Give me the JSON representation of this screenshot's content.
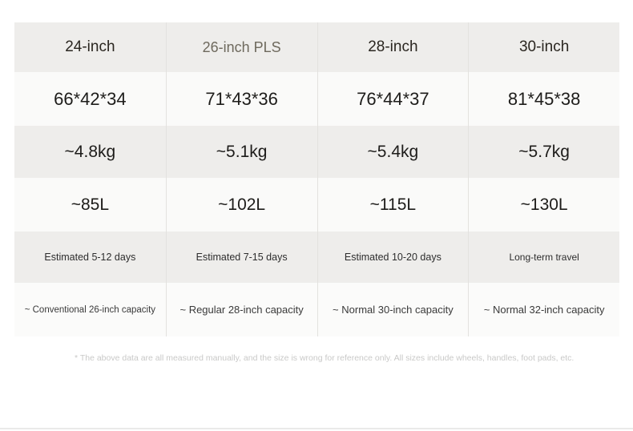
{
  "colors": {
    "row_gray": "#eeedeb",
    "row_light": "#fafaf9",
    "divider": "#e3e2df",
    "text_dark": "#1d1c1a",
    "header_highlight": "#6e695d",
    "footnote_gray": "#c9c9c8"
  },
  "table": {
    "headers": [
      "24-inch",
      "26-inch PLS",
      "28-inch",
      "30-inch"
    ],
    "rows": [
      {
        "id": "dimensions",
        "cells": [
          "66*42*34",
          "71*43*36",
          "76*44*37",
          "81*45*38"
        ]
      },
      {
        "id": "weight",
        "cells": [
          "~4.8kg",
          "~5.1kg",
          "~5.4kg",
          "~5.7kg"
        ]
      },
      {
        "id": "volume",
        "cells": [
          "~85L",
          "~102L",
          "~115L",
          "~130L"
        ]
      },
      {
        "id": "travel-duration",
        "cells": [
          "Estimated 5-12 days",
          "Estimated 7-15 days",
          "Estimated 10-20 days",
          "Long-term travel"
        ]
      },
      {
        "id": "capacity-equivalent",
        "cells": [
          "~ Conventional 26-inch capacity",
          "~ Regular 28-inch capacity",
          "~ Normal 30-inch capacity",
          "~ Normal 32-inch capacity"
        ]
      }
    ]
  },
  "footnote": "* The above data are all measured manually, and the size is wrong for reference only. All sizes include wheels, handles, foot pads, etc."
}
